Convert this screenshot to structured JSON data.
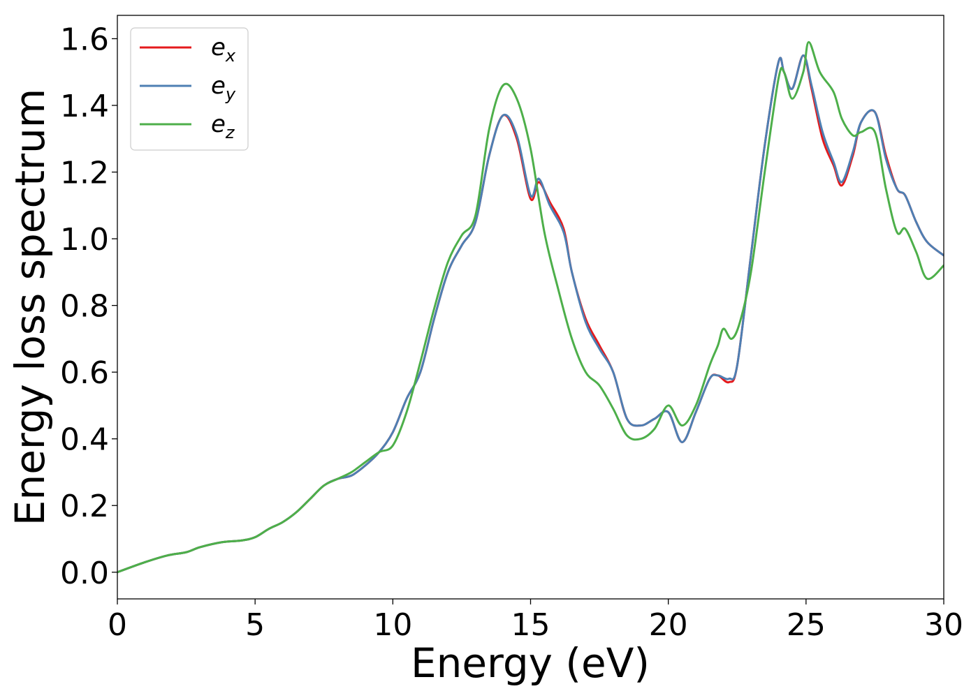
{
  "chart_data": {
    "type": "line",
    "xlabel": "Energy (eV)",
    "ylabel": "Energy loss spectrum",
    "xlim": [
      0,
      30
    ],
    "ylim": [
      -0.08,
      1.67
    ],
    "xticks": [
      0,
      5,
      10,
      15,
      20,
      25,
      30
    ],
    "xtick_labels": [
      "0",
      "5",
      "10",
      "15",
      "20",
      "25",
      "30"
    ],
    "yticks": [
      0.0,
      0.2,
      0.4,
      0.6,
      0.8,
      1.0,
      1.2,
      1.4,
      1.6
    ],
    "ytick_labels": [
      "0.0",
      "0.2",
      "0.4",
      "0.6",
      "0.8",
      "1.0",
      "1.2",
      "1.4",
      "1.6"
    ],
    "grid": false,
    "legend_position": "top-left",
    "series": [
      {
        "name": "e_x",
        "legend_base": "e",
        "legend_sub": "x",
        "color": "#e41a1c",
        "x": [
          0,
          1,
          1.8,
          2.5,
          3,
          3.8,
          4.5,
          5,
          5.5,
          6,
          6.5,
          7,
          7.5,
          8,
          8.5,
          9,
          9.5,
          10,
          10.5,
          11,
          11.5,
          12,
          12.5,
          13,
          13.5,
          14,
          14.5,
          15,
          15.3,
          15.7,
          16.2,
          16.5,
          17,
          17.5,
          18,
          18.5,
          19,
          19.5,
          20,
          20.5,
          21,
          21.5,
          21.8,
          22.2,
          22.5,
          23,
          23.5,
          24,
          24.2,
          24.5,
          24.9,
          25.2,
          25.6,
          26,
          26.3,
          26.7,
          27,
          27.5,
          27.9,
          28.3,
          28.6,
          29,
          29.4,
          30
        ],
        "y": [
          0.0,
          0.03,
          0.05,
          0.06,
          0.075,
          0.09,
          0.095,
          0.105,
          0.13,
          0.15,
          0.18,
          0.22,
          0.26,
          0.28,
          0.29,
          0.32,
          0.36,
          0.42,
          0.52,
          0.6,
          0.76,
          0.9,
          0.98,
          1.05,
          1.25,
          1.37,
          1.3,
          1.12,
          1.17,
          1.11,
          1.03,
          0.9,
          0.76,
          0.68,
          0.6,
          0.46,
          0.44,
          0.46,
          0.48,
          0.39,
          0.48,
          0.58,
          0.59,
          0.57,
          0.62,
          0.95,
          1.28,
          1.53,
          1.5,
          1.45,
          1.55,
          1.45,
          1.3,
          1.22,
          1.16,
          1.25,
          1.35,
          1.38,
          1.25,
          1.15,
          1.13,
          1.05,
          0.99,
          0.95
        ]
      },
      {
        "name": "e_y",
        "legend_base": "e",
        "legend_sub": "y",
        "color": "#4e7fb3",
        "x": [
          0,
          1,
          1.8,
          2.5,
          3,
          3.8,
          4.5,
          5,
          5.5,
          6,
          6.5,
          7,
          7.5,
          8,
          8.5,
          9,
          9.5,
          10,
          10.5,
          11,
          11.5,
          12,
          12.5,
          13,
          13.5,
          14,
          14.5,
          15,
          15.3,
          15.7,
          16.2,
          16.5,
          17,
          17.5,
          18,
          18.5,
          19,
          19.5,
          20,
          20.5,
          21,
          21.5,
          21.8,
          22.2,
          22.5,
          23,
          23.5,
          24,
          24.2,
          24.5,
          24.9,
          25.2,
          25.6,
          26,
          26.3,
          26.7,
          27,
          27.5,
          27.9,
          28.3,
          28.6,
          29,
          29.4,
          30
        ],
        "y": [
          0.0,
          0.03,
          0.05,
          0.06,
          0.075,
          0.09,
          0.095,
          0.105,
          0.13,
          0.15,
          0.18,
          0.22,
          0.26,
          0.28,
          0.29,
          0.32,
          0.36,
          0.42,
          0.52,
          0.6,
          0.76,
          0.9,
          0.98,
          1.05,
          1.25,
          1.37,
          1.31,
          1.13,
          1.18,
          1.1,
          1.02,
          0.9,
          0.75,
          0.67,
          0.6,
          0.46,
          0.44,
          0.46,
          0.48,
          0.39,
          0.48,
          0.58,
          0.59,
          0.58,
          0.62,
          0.95,
          1.28,
          1.53,
          1.5,
          1.45,
          1.55,
          1.46,
          1.32,
          1.23,
          1.17,
          1.26,
          1.35,
          1.38,
          1.24,
          1.15,
          1.13,
          1.05,
          0.99,
          0.95
        ]
      },
      {
        "name": "e_z",
        "legend_base": "e",
        "legend_sub": "z",
        "color": "#4daf4a",
        "x": [
          0,
          1,
          1.8,
          2.5,
          3,
          3.8,
          4.5,
          5,
          5.5,
          6,
          6.5,
          7,
          7.5,
          8,
          8.5,
          9,
          9.5,
          10,
          10.5,
          11,
          11.5,
          12,
          12.5,
          13,
          13.5,
          14,
          14.5,
          15,
          15.5,
          16,
          16.5,
          17,
          17.5,
          18,
          18.5,
          19,
          19.5,
          20,
          20.5,
          21,
          21.5,
          21.8,
          22,
          22.3,
          22.6,
          23,
          23.5,
          24,
          24.2,
          24.5,
          24.9,
          25.1,
          25.5,
          26,
          26.3,
          26.7,
          27,
          27.5,
          27.9,
          28.3,
          28.6,
          29,
          29.4,
          30
        ],
        "y": [
          0.0,
          0.03,
          0.05,
          0.06,
          0.075,
          0.09,
          0.095,
          0.105,
          0.13,
          0.15,
          0.18,
          0.22,
          0.26,
          0.28,
          0.3,
          0.33,
          0.36,
          0.38,
          0.48,
          0.63,
          0.79,
          0.93,
          1.01,
          1.07,
          1.33,
          1.46,
          1.42,
          1.27,
          1.02,
          0.85,
          0.7,
          0.6,
          0.56,
          0.49,
          0.41,
          0.4,
          0.43,
          0.5,
          0.44,
          0.5,
          0.62,
          0.68,
          0.73,
          0.7,
          0.75,
          0.9,
          1.2,
          1.48,
          1.5,
          1.42,
          1.5,
          1.59,
          1.5,
          1.44,
          1.36,
          1.31,
          1.32,
          1.32,
          1.15,
          1.02,
          1.03,
          0.96,
          0.88,
          0.92
        ]
      }
    ]
  }
}
